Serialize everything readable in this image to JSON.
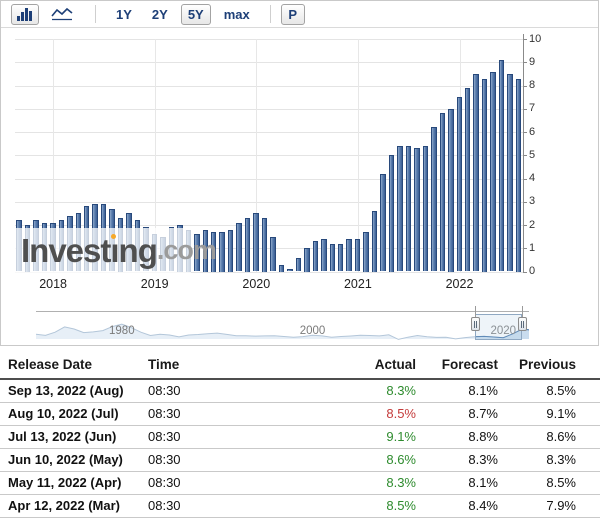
{
  "toolbar": {
    "chart_type_buttons": [
      {
        "name": "bar-chart-type",
        "selected": true
      },
      {
        "name": "line-chart-type",
        "selected": false
      }
    ],
    "range_buttons": [
      {
        "label": "1Y",
        "selected": false
      },
      {
        "label": "2Y",
        "selected": false
      },
      {
        "label": "5Y",
        "selected": true
      },
      {
        "label": "max",
        "selected": false
      }
    ],
    "print_button_label": "P"
  },
  "watermark": {
    "brand_prefix": "Invest",
    "brand_i": "ı",
    "brand_suffix": "ng",
    "domain": ".com"
  },
  "chart_data": [
    {
      "type": "bar",
      "x": [
        "2017-09",
        "2017-10",
        "2017-11",
        "2017-12",
        "2018-01",
        "2018-02",
        "2018-03",
        "2018-04",
        "2018-05",
        "2018-06",
        "2018-07",
        "2018-08",
        "2018-09",
        "2018-10",
        "2018-11",
        "2018-12",
        "2019-01",
        "2019-02",
        "2019-03",
        "2019-04",
        "2019-05",
        "2019-06",
        "2019-07",
        "2019-08",
        "2019-09",
        "2019-10",
        "2019-11",
        "2019-12",
        "2020-01",
        "2020-02",
        "2020-03",
        "2020-04",
        "2020-05",
        "2020-06",
        "2020-07",
        "2020-08",
        "2020-09",
        "2020-10",
        "2020-11",
        "2020-12",
        "2021-01",
        "2021-02",
        "2021-03",
        "2021-04",
        "2021-05",
        "2021-06",
        "2021-07",
        "2021-08",
        "2021-09",
        "2021-10",
        "2021-11",
        "2021-12",
        "2022-01",
        "2022-02",
        "2022-03",
        "2022-04",
        "2022-05",
        "2022-06",
        "2022-07",
        "2022-08"
      ],
      "values": [
        2.2,
        2.0,
        2.2,
        2.1,
        2.1,
        2.2,
        2.4,
        2.5,
        2.8,
        2.9,
        2.9,
        2.7,
        2.3,
        2.5,
        2.2,
        1.9,
        1.6,
        1.5,
        1.9,
        2.0,
        1.8,
        1.6,
        1.8,
        1.7,
        1.7,
        1.8,
        2.1,
        2.3,
        2.5,
        2.3,
        1.5,
        0.3,
        0.1,
        0.6,
        1.0,
        1.3,
        1.4,
        1.2,
        1.2,
        1.4,
        1.4,
        1.7,
        2.6,
        4.2,
        5.0,
        5.4,
        5.4,
        5.3,
        5.4,
        6.2,
        6.8,
        7.0,
        7.5,
        7.9,
        8.5,
        8.3,
        8.6,
        9.1,
        8.5,
        8.3
      ],
      "ylim": [
        0,
        10
      ],
      "y_ticks": [
        0,
        1,
        2,
        3,
        4,
        5,
        6,
        7,
        8,
        9,
        10
      ],
      "x_tick_labels": [
        "2018",
        "2019",
        "2020",
        "2021",
        "2022"
      ],
      "x_tick_indices": [
        4,
        16,
        28,
        40,
        52
      ],
      "grid": true,
      "legend": "none",
      "bar_fill": "#5c7fae",
      "bar_border": "#28497b"
    },
    {
      "type": "area",
      "role": "navigator",
      "x": [
        1971,
        1972,
        1973,
        1974,
        1975,
        1976,
        1977,
        1978,
        1979,
        1980,
        1981,
        1982,
        1983,
        1984,
        1985,
        1986,
        1987,
        1988,
        1989,
        1990,
        1991,
        1992,
        1993,
        1994,
        1995,
        1996,
        1997,
        1998,
        1999,
        2000,
        2001,
        2002,
        2003,
        2004,
        2005,
        2006,
        2007,
        2008,
        2009,
        2010,
        2011,
        2012,
        2013,
        2014,
        2015,
        2016,
        2017,
        2018,
        2019,
        2020,
        2021,
        2022,
        2022.7
      ],
      "values": [
        4.4,
        3.3,
        6.2,
        11.0,
        9.1,
        5.8,
        6.5,
        7.6,
        11.3,
        13.5,
        10.3,
        6.2,
        3.2,
        4.3,
        3.6,
        1.9,
        3.6,
        4.1,
        4.8,
        5.4,
        4.2,
        3.0,
        3.0,
        2.6,
        2.8,
        3.0,
        2.3,
        1.6,
        2.2,
        3.4,
        2.8,
        1.6,
        2.3,
        2.7,
        3.4,
        3.2,
        2.8,
        3.8,
        -0.4,
        1.6,
        3.2,
        2.1,
        1.5,
        1.6,
        0.1,
        1.3,
        2.1,
        2.4,
        1.8,
        1.2,
        4.7,
        9.1,
        8.3
      ],
      "x_tick_labels": [
        "1980",
        "2000",
        "2020"
      ],
      "x_tick_years": [
        1980,
        2000,
        2020
      ],
      "selection": {
        "from_year": 2017.05,
        "to_year": 2022.0
      }
    }
  ],
  "table": {
    "headers": [
      "Release Date",
      "Time",
      "Actual",
      "Forecast",
      "Previous"
    ],
    "rows": [
      {
        "release_date": "Sep 13, 2022 (Aug)",
        "time": "08:30",
        "actual": "8.3%",
        "actual_color": "green",
        "forecast": "8.1%",
        "previous": "8.5%"
      },
      {
        "release_date": "Aug 10, 2022 (Jul)",
        "time": "08:30",
        "actual": "8.5%",
        "actual_color": "red",
        "forecast": "8.7%",
        "previous": "9.1%"
      },
      {
        "release_date": "Jul 13, 2022 (Jun)",
        "time": "08:30",
        "actual": "9.1%",
        "actual_color": "green",
        "forecast": "8.8%",
        "previous": "8.6%"
      },
      {
        "release_date": "Jun 10, 2022 (May)",
        "time": "08:30",
        "actual": "8.6%",
        "actual_color": "green",
        "forecast": "8.3%",
        "previous": "8.3%"
      },
      {
        "release_date": "May 11, 2022 (Apr)",
        "time": "08:30",
        "actual": "8.3%",
        "actual_color": "green",
        "forecast": "8.1%",
        "previous": "8.5%"
      },
      {
        "release_date": "Apr 12, 2022 (Mar)",
        "time": "08:30",
        "actual": "8.5%",
        "actual_color": "green",
        "forecast": "8.4%",
        "previous": "7.9%"
      }
    ]
  },
  "colors": {
    "actual_green": "#2e8b2e",
    "actual_red": "#c43b3b",
    "bar_fill": "#5c7fae",
    "bar_border": "#28497b",
    "accent_orange": "#f7a928",
    "toolbar_navy": "#1d3f77",
    "grid": "#e4e4e4"
  }
}
